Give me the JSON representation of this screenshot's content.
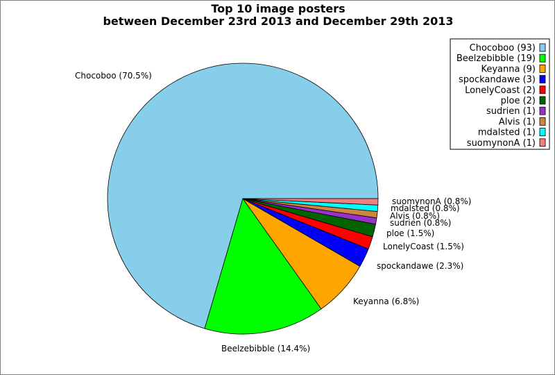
{
  "chart_data": {
    "type": "pie",
    "title": "Top 10 image posters",
    "subtitle": "between December 23rd 2013 and December 29th 2013",
    "legend_position": "top-right",
    "slices": [
      {
        "name": "Chocoboo",
        "value": 93,
        "percent_label": "Chocoboo (70.5%)",
        "legend_label": "Chocoboo (93)",
        "color": "#87ceeb"
      },
      {
        "name": "Beelzebibble",
        "value": 19,
        "percent_label": "Beelzebibble (14.4%)",
        "legend_label": "Beelzebibble (19)",
        "color": "#00ff00"
      },
      {
        "name": "Keyanna",
        "value": 9,
        "percent_label": "Keyanna (6.8%)",
        "legend_label": "Keyanna (9)",
        "color": "#ffa500"
      },
      {
        "name": "spockandawe",
        "value": 3,
        "percent_label": "spockandawe (2.3%)",
        "legend_label": "spockandawe (3)",
        "color": "#0000ff"
      },
      {
        "name": "LonelyCoast",
        "value": 2,
        "percent_label": "LonelyCoast (1.5%)",
        "legend_label": "LonelyCoast (2)",
        "color": "#ff0000"
      },
      {
        "name": "ploe",
        "value": 2,
        "percent_label": "ploe (1.5%)",
        "legend_label": "ploe (2)",
        "color": "#006400"
      },
      {
        "name": "sudrien",
        "value": 1,
        "percent_label": "sudrien (0.8%)",
        "legend_label": "sudrien (1)",
        "color": "#9932cc"
      },
      {
        "name": "Alvis",
        "value": 1,
        "percent_label": "Alvis (0.8%)",
        "legend_label": "Alvis (1)",
        "color": "#cd853f"
      },
      {
        "name": "mdalsted",
        "value": 1,
        "percent_label": "mdalsted (0.8%)",
        "legend_label": "mdalsted (1)",
        "color": "#00ffff"
      },
      {
        "name": "suomynonA",
        "value": 1,
        "percent_label": "suomynonA (0.8%)",
        "legend_label": "suomynonA (1)",
        "color": "#f08080"
      }
    ]
  }
}
